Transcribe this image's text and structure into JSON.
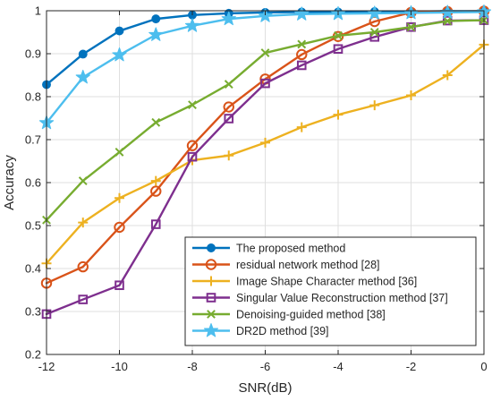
{
  "chart_data": {
    "type": "line",
    "title": "",
    "xlabel": "SNR(dB)",
    "ylabel": "Accuracy",
    "xlim": [
      -12,
      0
    ],
    "ylim": [
      0.2,
      1.0
    ],
    "xticks": [
      "-12",
      "-10",
      "-8",
      "-6",
      "-4",
      "-2",
      "0"
    ],
    "yticks": [
      "0.2",
      "0.3",
      "0.4",
      "0.5",
      "0.6",
      "0.7",
      "0.8",
      "0.9",
      "1"
    ],
    "x": [
      -12,
      -11,
      -10,
      -9,
      -8,
      -7,
      -6,
      -5,
      -4,
      -3,
      -2,
      -1,
      0
    ],
    "grid": true,
    "legend_position": "bottom-right",
    "series": [
      {
        "name": "The proposed method",
        "color": "#0072BD",
        "marker": "filled-circle",
        "values": [
          0.828,
          0.899,
          0.953,
          0.981,
          0.99,
          0.994,
          0.996,
          0.997,
          0.997,
          0.998,
          0.998,
          0.999,
          0.999
        ]
      },
      {
        "name": "residual network method [28]",
        "color": "#D95319",
        "marker": "open-circle",
        "values": [
          0.366,
          0.404,
          0.496,
          0.58,
          0.686,
          0.776,
          0.841,
          0.898,
          0.94,
          0.975,
          0.996,
          0.998,
          0.999
        ]
      },
      {
        "name": "Image Shape Character method [36]",
        "color": "#EDB120",
        "marker": "plus",
        "values": [
          0.412,
          0.507,
          0.564,
          0.604,
          0.652,
          0.663,
          0.693,
          0.729,
          0.758,
          0.78,
          0.803,
          0.85,
          0.921
        ]
      },
      {
        "name": "Singular Value Reconstruction method [37]",
        "color": "#7E2F8E",
        "marker": "square",
        "values": [
          0.294,
          0.328,
          0.361,
          0.503,
          0.66,
          0.749,
          0.831,
          0.873,
          0.911,
          0.939,
          0.962,
          0.977,
          0.978
        ]
      },
      {
        "name": "Denoising-guided method [38]",
        "color": "#77AC30",
        "marker": "x",
        "values": [
          0.513,
          0.604,
          0.671,
          0.74,
          0.781,
          0.829,
          0.902,
          0.922,
          0.942,
          0.95,
          0.962,
          0.976,
          0.978
        ]
      },
      {
        "name": "DR2D method [39]",
        "color": "#4DBEEE",
        "marker": "star",
        "values": [
          0.739,
          0.845,
          0.897,
          0.944,
          0.965,
          0.981,
          0.988,
          0.992,
          0.993,
          0.994,
          0.995,
          0.996,
          0.997
        ]
      }
    ]
  }
}
